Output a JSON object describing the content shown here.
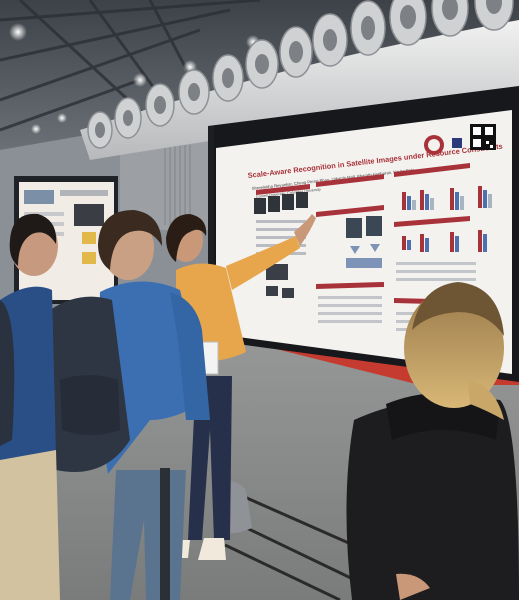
{
  "scene": {
    "kind": "photo",
    "subject": "poster-session"
  },
  "poster": {
    "title": "Scale-Aware Recognition in Satellite Images under Resource Constraints",
    "authors": "Shreelekha Revankar, Cheng Perng Phoo, Utkarsh Mall, Bharath Hariharan, Kavita Bala",
    "affiliation": "Cornell University, Columbia University",
    "accent_color": "#a8323a"
  },
  "palette": {
    "ceiling": "#4a4f55",
    "duct": "#d9dadb",
    "wall": "#8b9096",
    "floor": "#8d8f8f",
    "red_carpet": "#c63b2f",
    "presenter_shirt": "#e7a64b",
    "visitor_shirt": "#3b6fb1",
    "hoodie": "#1d1d20"
  }
}
